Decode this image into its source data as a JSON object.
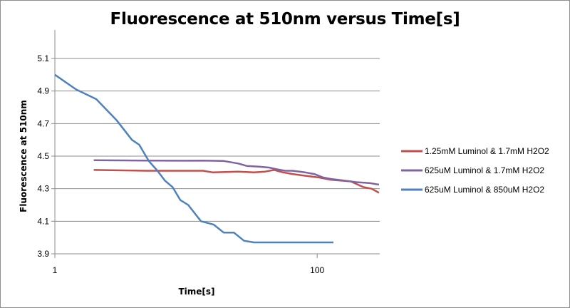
{
  "chart_data": {
    "type": "line",
    "title": "Fluorescence at 510nm versus Time[s]",
    "xlabel": "Time[s]",
    "ylabel": "Fluorescence at 510nm",
    "xscale": "log",
    "xlim": [
      1,
      300
    ],
    "ylim": [
      3.9,
      5.1
    ],
    "xticks": [
      "1",
      "100"
    ],
    "yticks": [
      "3.9",
      "4.1",
      "4.3",
      "4.5",
      "4.7",
      "4.9",
      "5.1"
    ],
    "grid": "horizontal",
    "legend_position": "right",
    "series": [
      {
        "name": "1.25mM Luminol & 1.7mM H2O2",
        "color": "#c0504d",
        "x": [
          1.98,
          5,
          10,
          13.5,
          16,
          25,
          33,
          40,
          47,
          55,
          65,
          80,
          101,
          127,
          150,
          180,
          225,
          260,
          296
        ],
        "y": [
          4.415,
          4.41,
          4.41,
          4.41,
          4.4,
          4.405,
          4.4,
          4.405,
          4.415,
          4.4,
          4.39,
          4.38,
          4.37,
          4.355,
          4.35,
          4.345,
          4.31,
          4.3,
          4.275
        ]
      },
      {
        "name": "625uM Luminol & 1.7mM H2O2",
        "color": "#8064a2",
        "x": [
          1.98,
          5,
          10,
          13.5,
          19.4,
          25,
          29,
          36,
          43,
          49,
          57,
          65,
          81,
          95,
          110,
          127,
          160,
          198,
          250,
          296
        ],
        "y": [
          4.475,
          4.473,
          4.472,
          4.473,
          4.47,
          4.455,
          4.44,
          4.435,
          4.43,
          4.42,
          4.41,
          4.41,
          4.4,
          4.39,
          4.37,
          4.36,
          4.35,
          4.34,
          4.335,
          4.325
        ]
      },
      {
        "name": "625uM Luminol & 850uM H2O2",
        "color": "#4f81bd",
        "x": [
          1,
          1.45,
          2.07,
          2.96,
          3.87,
          4.4,
          5.2,
          6.06,
          6.9,
          7.9,
          9.05,
          10.4,
          13,
          16.2,
          19.4,
          23.2,
          27.7,
          33,
          52,
          80,
          133
        ],
        "y": [
          5.0,
          4.91,
          4.85,
          4.72,
          4.6,
          4.57,
          4.47,
          4.41,
          4.35,
          4.31,
          4.23,
          4.2,
          4.1,
          4.08,
          4.03,
          4.03,
          3.98,
          3.97,
          3.97,
          3.97,
          3.97
        ]
      }
    ]
  }
}
